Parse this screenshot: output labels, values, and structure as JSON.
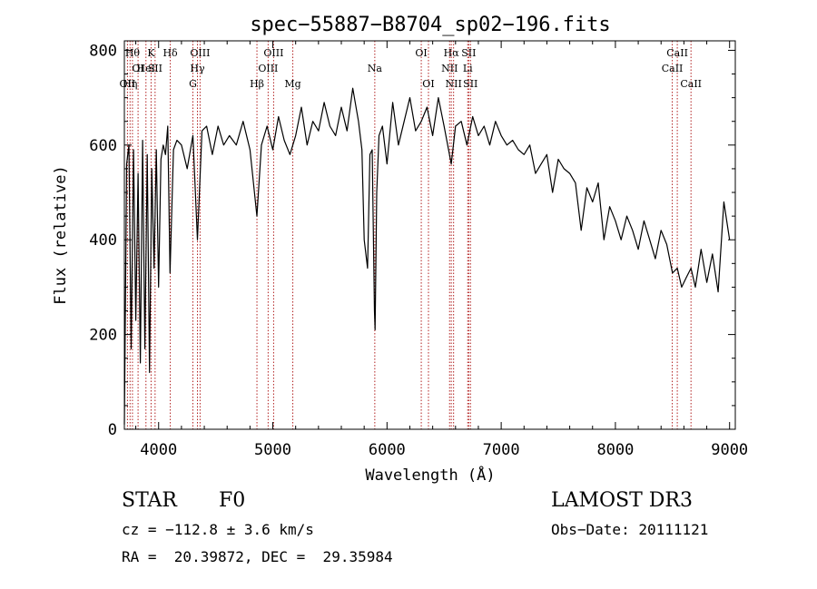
{
  "chart_data": {
    "type": "line",
    "title": "spec−55887−B8704_sp02−196.fits",
    "xlabel": "Wavelength (Å)",
    "ylabel": "Flux (relative)",
    "xlim": [
      3700,
      9050
    ],
    "ylim": [
      0,
      820
    ],
    "xticks": [
      4000,
      5000,
      6000,
      7000,
      8000,
      9000
    ],
    "yticks": [
      0,
      200,
      400,
      600,
      800
    ],
    "grid": false,
    "series": [
      {
        "name": "flux",
        "x": [
          3700,
          3720,
          3740,
          3760,
          3780,
          3800,
          3820,
          3840,
          3860,
          3880,
          3900,
          3920,
          3940,
          3960,
          3980,
          4000,
          4020,
          4040,
          4060,
          4080,
          4100,
          4130,
          4160,
          4200,
          4250,
          4300,
          4340,
          4380,
          4420,
          4470,
          4520,
          4570,
          4620,
          4680,
          4740,
          4800,
          4861,
          4900,
          4950,
          5000,
          5050,
          5100,
          5150,
          5200,
          5250,
          5300,
          5350,
          5400,
          5450,
          5500,
          5550,
          5600,
          5650,
          5700,
          5750,
          5780,
          5800,
          5830,
          5850,
          5870,
          5890,
          5896,
          5910,
          5930,
          5960,
          6000,
          6050,
          6100,
          6150,
          6200,
          6250,
          6300,
          6350,
          6400,
          6450,
          6500,
          6563,
          6600,
          6650,
          6700,
          6750,
          6800,
          6850,
          6900,
          6950,
          7000,
          7050,
          7100,
          7150,
          7200,
          7250,
          7300,
          7350,
          7400,
          7450,
          7500,
          7550,
          7600,
          7650,
          7700,
          7750,
          7800,
          7850,
          7900,
          7950,
          8000,
          8050,
          8100,
          8150,
          8200,
          8250,
          8300,
          8350,
          8400,
          8450,
          8500,
          8542,
          8580,
          8620,
          8662,
          8700,
          8750,
          8800,
          8850,
          8900,
          8950,
          9000
        ],
        "y": [
          10,
          560,
          600,
          170,
          590,
          230,
          540,
          140,
          610,
          170,
          580,
          120,
          550,
          340,
          590,
          300,
          570,
          600,
          580,
          640,
          330,
          590,
          610,
          600,
          550,
          620,
          400,
          630,
          640,
          580,
          640,
          600,
          620,
          600,
          650,
          590,
          450,
          600,
          640,
          590,
          660,
          610,
          580,
          620,
          680,
          600,
          650,
          630,
          690,
          640,
          620,
          680,
          630,
          720,
          650,
          590,
          400,
          340,
          580,
          590,
          250,
          210,
          500,
          620,
          640,
          560,
          690,
          600,
          650,
          700,
          630,
          650,
          680,
          620,
          700,
          640,
          560,
          640,
          650,
          600,
          660,
          620,
          640,
          600,
          650,
          620,
          600,
          610,
          590,
          580,
          600,
          540,
          560,
          580,
          500,
          570,
          550,
          540,
          520,
          420,
          510,
          480,
          520,
          400,
          470,
          440,
          400,
          450,
          420,
          380,
          440,
          400,
          360,
          420,
          390,
          330,
          340,
          300,
          320,
          340,
          300,
          380,
          310,
          370,
          290,
          480,
          400
        ]
      }
    ],
    "lines": [
      {
        "wl": 3727,
        "row": 3,
        "label": "OII"
      },
      {
        "wl": 3750,
        "row": 3,
        "label": "Hη"
      },
      {
        "wl": 3771,
        "row": 1,
        "label": "Hθ"
      },
      {
        "wl": 3820,
        "row": 2,
        "label": "OI"
      },
      {
        "wl": 3889,
        "row": 2,
        "label": "HeI"
      },
      {
        "wl": 3934,
        "row": 1,
        "label": "K"
      },
      {
        "wl": 3969,
        "row": 2,
        "label": "SII"
      },
      {
        "wl": 4102,
        "row": 1,
        "label": "Hδ"
      },
      {
        "wl": 4300,
        "row": 3,
        "label": "G"
      },
      {
        "wl": 4340,
        "row": 2,
        "label": "Hγ"
      },
      {
        "wl": 4363,
        "row": 1,
        "label": "OIII"
      },
      {
        "wl": 4861,
        "row": 3,
        "label": "Hβ"
      },
      {
        "wl": 4959,
        "row": 2,
        "label": "OIII"
      },
      {
        "wl": 5007,
        "row": 1,
        "label": "OIII"
      },
      {
        "wl": 5175,
        "row": 3,
        "label": "Mg"
      },
      {
        "wl": 5893,
        "row": 2,
        "label": "Na"
      },
      {
        "wl": 6300,
        "row": 1,
        "label": "OI"
      },
      {
        "wl": 6363,
        "row": 3,
        "label": "OI"
      },
      {
        "wl": 6548,
        "row": 2,
        "label": "NII"
      },
      {
        "wl": 6563,
        "row": 1,
        "label": "Hα"
      },
      {
        "wl": 6583,
        "row": 3,
        "label": "NII"
      },
      {
        "wl": 6707,
        "row": 2,
        "label": "Li"
      },
      {
        "wl": 6716,
        "row": 1,
        "label": "SII"
      },
      {
        "wl": 6731,
        "row": 3,
        "label": "SII"
      },
      {
        "wl": 8498,
        "row": 2,
        "label": "CaII"
      },
      {
        "wl": 8542,
        "row": 1,
        "label": "CaII"
      },
      {
        "wl": 8662,
        "row": 3,
        "label": "CaII"
      }
    ]
  },
  "info": {
    "object_type": "STAR",
    "subclass": "F0",
    "survey": "LAMOST DR3",
    "cz": "cz = −112.8 ± 3.6 km/s",
    "obs_date": "Obs−Date: 20111121",
    "coords": "RA =  20.39872, DEC =  29.35984"
  },
  "colors": {
    "spectrum": "#000000",
    "line_marker": "#b22222",
    "axis": "#000000"
  }
}
